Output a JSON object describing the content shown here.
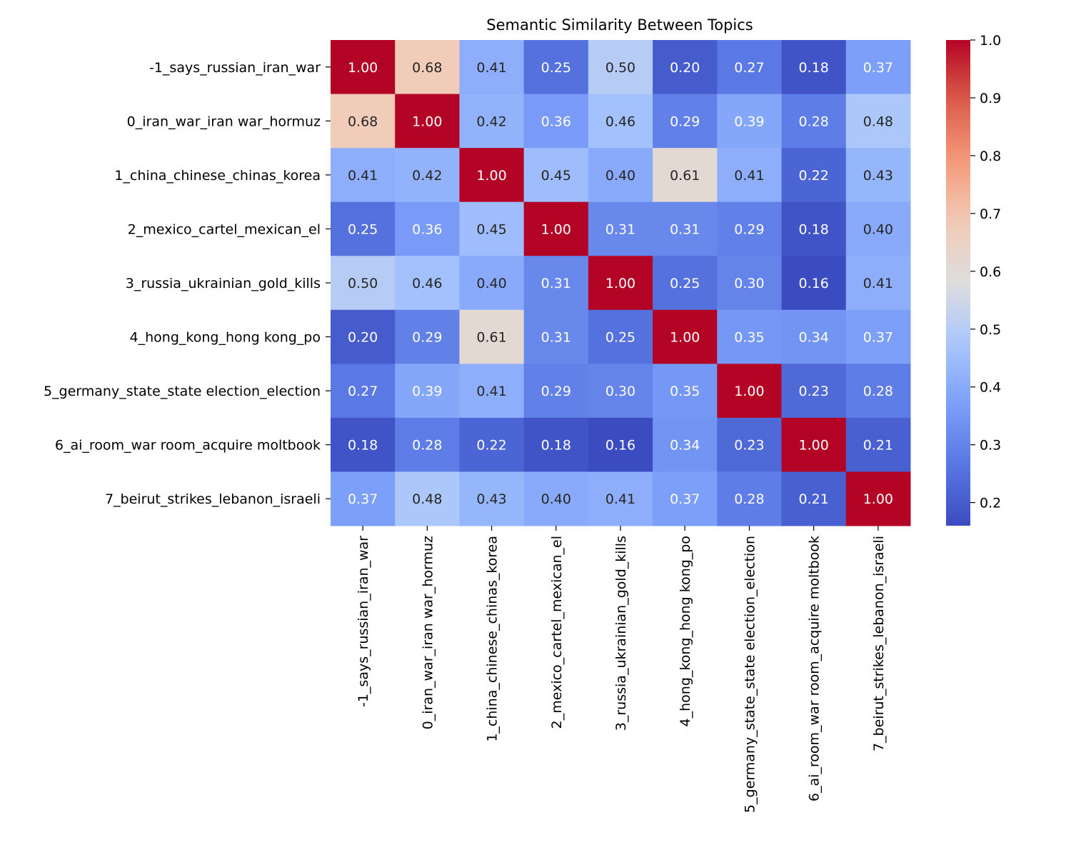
{
  "chart_data": {
    "type": "heatmap",
    "title": "Semantic Similarity Between Topics",
    "xlabel": "",
    "ylabel": "",
    "colormap": "coolwarm",
    "colorbar": {
      "range": [
        0.16,
        1.0
      ],
      "ticks": [
        "0.2",
        "0.3",
        "0.4",
        "0.5",
        "0.6",
        "0.7",
        "0.8",
        "0.9",
        "1.0"
      ],
      "placement": "right"
    },
    "labels": [
      "-1_says_russian_iran_war",
      "0_iran_war_iran war_hormuz",
      "1_china_chinese_chinas_korea",
      "2_mexico_cartel_mexican_el",
      "3_russia_ukrainian_gold_kills",
      "4_hong_kong_hong kong_po",
      "5_germany_state_state election_election",
      "6_ai_room_war room_acquire moltbook",
      "7_beirut_strikes_lebanon_israeli"
    ],
    "values": [
      [
        1.0,
        0.68,
        0.41,
        0.25,
        0.5,
        0.2,
        0.27,
        0.18,
        0.37
      ],
      [
        0.68,
        1.0,
        0.42,
        0.36,
        0.46,
        0.29,
        0.39,
        0.28,
        0.48
      ],
      [
        0.41,
        0.42,
        1.0,
        0.45,
        0.4,
        0.61,
        0.41,
        0.22,
        0.43
      ],
      [
        0.25,
        0.36,
        0.45,
        1.0,
        0.31,
        0.31,
        0.29,
        0.18,
        0.4
      ],
      [
        0.5,
        0.46,
        0.4,
        0.31,
        1.0,
        0.25,
        0.3,
        0.16,
        0.41
      ],
      [
        0.2,
        0.29,
        0.61,
        0.31,
        0.25,
        1.0,
        0.35,
        0.34,
        0.37
      ],
      [
        0.27,
        0.39,
        0.41,
        0.29,
        0.3,
        0.35,
        1.0,
        0.23,
        0.28
      ],
      [
        0.18,
        0.28,
        0.22,
        0.18,
        0.16,
        0.34,
        0.23,
        1.0,
        0.21
      ],
      [
        0.37,
        0.48,
        0.43,
        0.4,
        0.41,
        0.37,
        0.28,
        0.21,
        1.0
      ]
    ]
  }
}
